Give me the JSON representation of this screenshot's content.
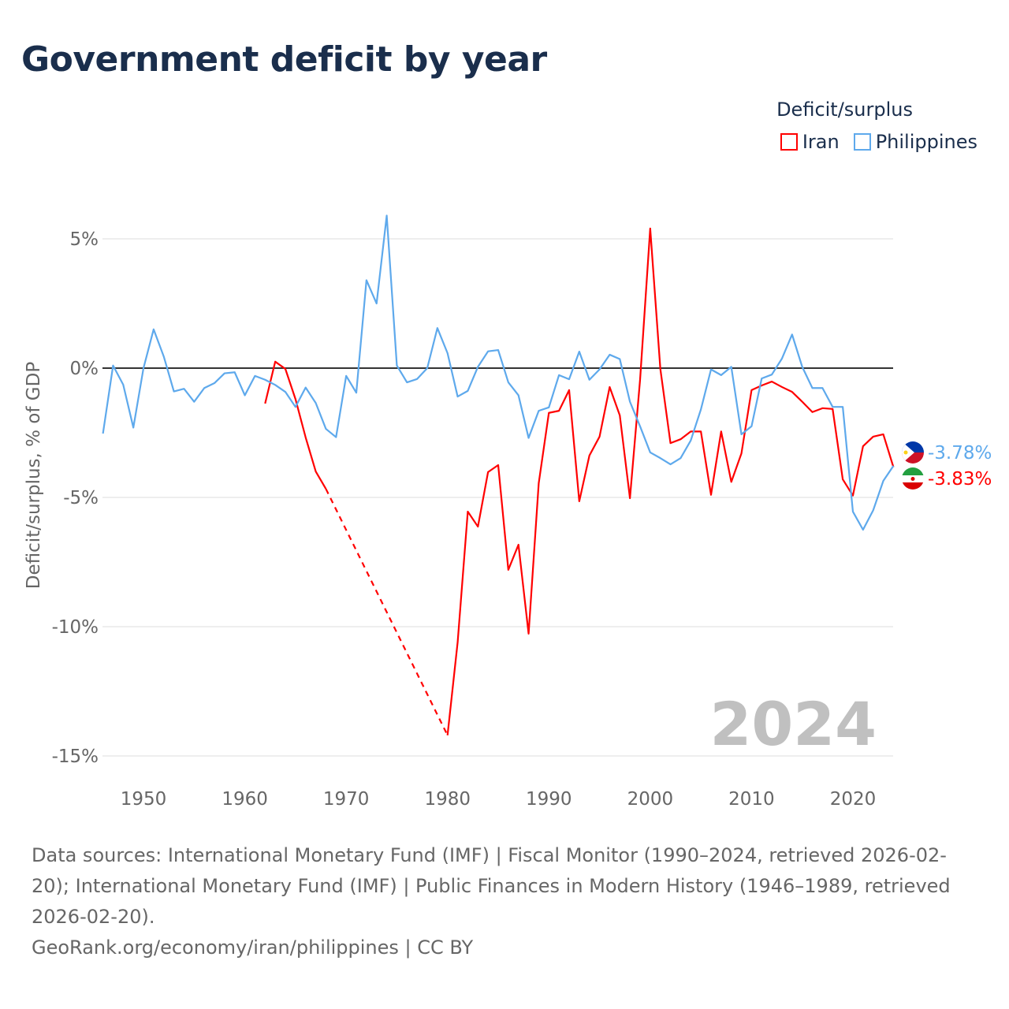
{
  "title": "Government deficit by year",
  "legend": {
    "title": "Deficit/surplus",
    "items": [
      {
        "name": "Iran",
        "color": "#ff0000"
      },
      {
        "name": "Philippines",
        "color": "#5ea9ec"
      }
    ]
  },
  "watermark_year": "2024",
  "end_labels": {
    "philippines": "-3.78%",
    "iran": "-3.83%"
  },
  "footer": {
    "sources": "Data sources: International Monetary Fund (IMF) | Fiscal Monitor (1990–2024, retrieved 2026-02-20); International Monetary Fund (IMF) | Public Finances in Modern History (1946–1989, retrieved 2026-02-20).",
    "credit": "GeoRank.org/economy/iran/philippines | CC BY"
  },
  "chart_data": {
    "type": "line",
    "title": "Government deficit by year",
    "xlabel": "",
    "ylabel": "Deficit/surplus, % of GDP",
    "xlim": [
      1946,
      2024
    ],
    "ylim": [
      -15.5,
      6.5
    ],
    "x_ticks": [
      1950,
      1960,
      1970,
      1980,
      1990,
      2000,
      2010,
      2020
    ],
    "y_ticks": [
      {
        "v": 5,
        "label": "5%"
      },
      {
        "v": 0,
        "label": "0%"
      },
      {
        "v": -5,
        "label": "-5%"
      },
      {
        "v": -10,
        "label": "-10%"
      },
      {
        "v": -15,
        "label": "-15%"
      }
    ],
    "grid": true,
    "legend_position": "top-right",
    "series": [
      {
        "name": "Philippines",
        "color": "#5ea9ec",
        "start_year": 1946,
        "values": [
          -2.53,
          0.1,
          -0.64,
          -2.3,
          0,
          1.5,
          0.45,
          -0.9,
          -0.8,
          -1.3,
          -0.77,
          -0.58,
          -0.2,
          -0.16,
          -1.05,
          -0.3,
          -0.45,
          -0.65,
          -0.92,
          -1.5,
          -0.75,
          -1.35,
          -2.35,
          -2.67,
          -0.3,
          -0.95,
          3.4,
          2.5,
          5.9,
          0.1,
          -0.55,
          -0.42,
          0,
          1.55,
          0.58,
          -1.1,
          -0.88,
          0.05,
          0.65,
          0.7,
          -0.55,
          -1.05,
          -2.7,
          -1.65,
          -1.52,
          -0.27,
          -0.43,
          0.64,
          -0.45,
          -0.05,
          0.52,
          0.35,
          -1.3,
          -2.25,
          -3.26,
          -3.48,
          -3.72,
          -3.48,
          -2.8,
          -1.6,
          -0.05,
          -0.27,
          0.05,
          -2.56,
          -2.25,
          -0.4,
          -0.25,
          0.37,
          1.3,
          0.05,
          -0.77,
          -0.77,
          -1.5,
          -1.5,
          -5.55,
          -6.25,
          -5.5,
          -4.36,
          -3.78
        ]
      },
      {
        "name": "Iran",
        "color": "#ff0000",
        "start_year": 1962,
        "values": [
          -1.37,
          0.25,
          -0.03,
          -1.2,
          -2.68,
          -4.0,
          -4.67,
          null,
          null,
          null,
          null,
          null,
          null,
          null,
          null,
          null,
          null,
          null,
          -14.2,
          -10.6,
          -5.55,
          -6.13,
          -4.02,
          -3.75,
          -7.8,
          -6.83,
          -10.27,
          -4.45,
          -1.73,
          -1.65,
          -0.85,
          -5.15,
          -3.38,
          -2.65,
          -0.73,
          -1.83,
          -5.03,
          -0.45,
          5.4,
          -0.03,
          -2.9,
          -2.75,
          -2.45,
          -2.45,
          -4.9,
          -2.45,
          -4.4,
          -3.3,
          -0.85,
          -0.67,
          -0.52,
          -0.73,
          -0.92,
          -1.3,
          -1.7,
          -1.55,
          -1.58,
          -4.3,
          -4.93,
          -3.02,
          -2.65,
          -2.56,
          -3.83
        ]
      }
    ]
  }
}
